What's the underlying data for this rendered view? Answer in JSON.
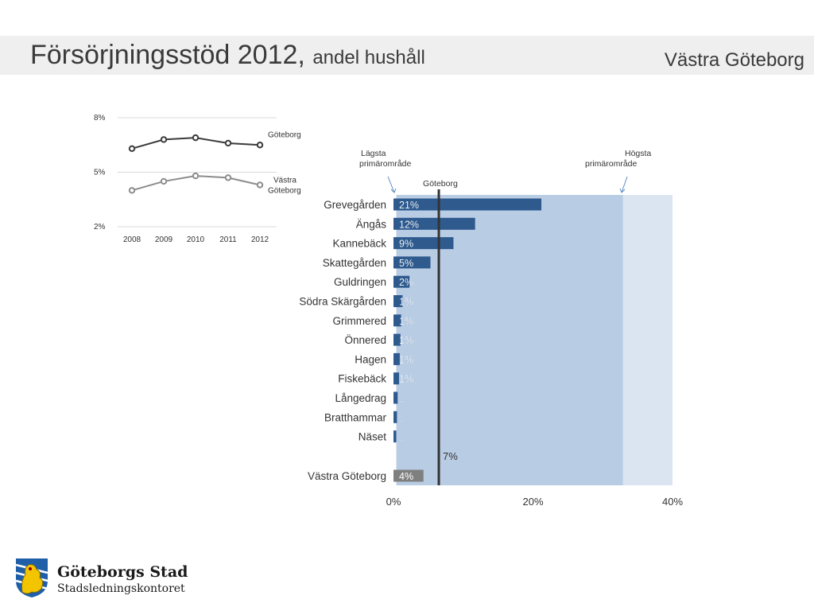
{
  "header": {
    "title": "Försörjningsstöd 2012,",
    "subtitle": "andel hushåll",
    "region": "Västra Göteborg"
  },
  "chart_data": [
    {
      "type": "line",
      "x": [
        "2008",
        "2009",
        "2010",
        "2011",
        "2012"
      ],
      "ylim": [
        2,
        8
      ],
      "yticks": [
        "8%",
        "5%",
        "2%"
      ],
      "ytick_values": [
        8,
        5,
        2
      ],
      "grid": true,
      "series": [
        {
          "name": "Göteborg",
          "values": [
            6.3,
            6.8,
            6.9,
            6.6,
            6.5
          ],
          "color": "#3b3b3b"
        },
        {
          "name_lines": [
            "Västra",
            "Göteborg"
          ],
          "values": [
            4.0,
            4.5,
            4.8,
            4.7,
            4.3
          ],
          "color": "#8c8c8c"
        }
      ]
    },
    {
      "type": "bar",
      "orientation": "horizontal",
      "xlim": [
        0,
        40
      ],
      "xticks": [
        "0%",
        "20%",
        "40%"
      ],
      "xtick_values": [
        0,
        20,
        40
      ],
      "categories": [
        "Grevegården",
        "Ängås",
        "Kannebäck",
        "Skattegården",
        "Guldringen",
        "Södra Skärgården",
        "Grimmered",
        "Önnered",
        "Hagen",
        "Fiskebäck",
        "Långedrag",
        "Bratthammar",
        "Näset"
      ],
      "values": [
        21.2,
        11.7,
        8.6,
        5.3,
        2.3,
        1.3,
        1.1,
        1.0,
        0.9,
        0.8,
        0.6,
        0.5,
        0.4
      ],
      "labels": [
        "21%",
        "12%",
        "9%",
        "5%",
        "2%",
        "1%",
        "1%",
        "1%",
        "1%",
        "1%",
        "..",
        "..",
        ".."
      ],
      "bar_color": "#2e5a8e",
      "total": {
        "category": "Västra Göteborg",
        "value": 4.3,
        "label": "4%",
        "color": "#7f7f7f"
      },
      "reference": {
        "name": "Göteborg",
        "value": 6.5,
        "label": "7%"
      },
      "range_low": {
        "label_lines": [
          "Lägsta",
          "primärområde"
        ],
        "value": 0.4
      },
      "range_high": {
        "label_lines": [
          "Högsta",
          "primärområde"
        ],
        "value": 32.9
      },
      "colors": {
        "range_fill": "#b8cce4",
        "outer_fill": "#dbe5f1",
        "arrow": "#5b8ac6",
        "reference_line": "#333333"
      }
    }
  ],
  "logo": {
    "name": "Göteborgs Stad",
    "department": "Stadsledningskontoret"
  }
}
